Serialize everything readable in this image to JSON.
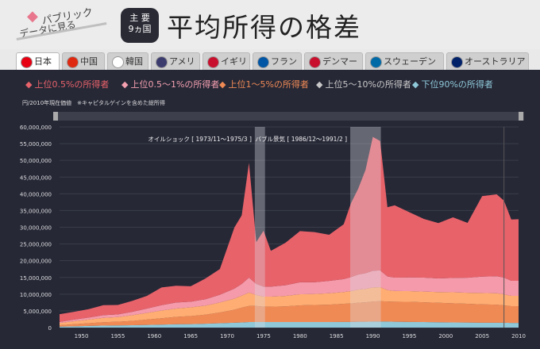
{
  "logo": {
    "line1": "パブリック",
    "line2": "データに見る"
  },
  "badge": {
    "line1": "主 要",
    "line2": "9ヵ国"
  },
  "title": "平均所得の格差",
  "tabs": [
    {
      "label": "日本",
      "active": true,
      "flag": "japan-flag-icon"
    },
    {
      "label": "中国",
      "active": false,
      "flag": "china-flag-icon"
    },
    {
      "label": "韓国",
      "active": false,
      "flag": "korea-flag-icon"
    },
    {
      "label": "アメリカ",
      "active": false,
      "flag": "usa-flag-icon"
    },
    {
      "label": "イギリス",
      "active": false,
      "flag": "uk-flag-icon"
    },
    {
      "label": "フランス",
      "active": false,
      "flag": "france-flag-icon"
    },
    {
      "label": "デンマーク",
      "active": false,
      "flag": "denmark-flag-icon"
    },
    {
      "label": "スウェーデン",
      "active": false,
      "flag": "sweden-flag-icon"
    },
    {
      "label": "オーストラリア",
      "active": false,
      "flag": "australia-flag-icon"
    }
  ],
  "legend": [
    {
      "label": "上位0.5%の所得者",
      "color": "#e8626a"
    },
    {
      "label": "上位0.5～1%の所得者",
      "color": "#f4a0b0"
    },
    {
      "label": "上位1～5%の所得者",
      "color": "#f08a55"
    },
    {
      "label": "上位5～10%の所得者",
      "color": "#c8c8c8"
    },
    {
      "label": "下位90%の所得者",
      "color": "#8fc8d8"
    }
  ],
  "note": "円/2010年現在価値　※キャピタルゲインを含めた総所得",
  "chart_data": {
    "type": "area",
    "stacked": true,
    "ylim": [
      0,
      60000000
    ],
    "yticks": [
      "0",
      "5,000,000",
      "10,000,000",
      "15,000,000",
      "20,000,000",
      "25,000,000",
      "30,000,000",
      "35,000,000",
      "40,000,000",
      "45,000,000",
      "50,000,000",
      "55,000,000",
      "60,000,000"
    ],
    "xlim": [
      1947,
      2010
    ],
    "xticks": [
      "1950",
      "1955",
      "1960",
      "1965",
      "1970",
      "1975",
      "1980",
      "1985",
      "1990",
      "1995",
      "2000",
      "2005",
      "2010"
    ],
    "x": [
      1947,
      1949,
      1951,
      1953,
      1955,
      1957,
      1959,
      1961,
      1963,
      1965,
      1967,
      1969,
      1971,
      1972,
      1973,
      1974,
      1975,
      1976,
      1978,
      1980,
      1982,
      1984,
      1986,
      1987,
      1988,
      1989,
      1990,
      1991,
      1992,
      1993,
      1995,
      1997,
      1999,
      2001,
      2003,
      2005,
      2007,
      2008,
      2009,
      2010
    ],
    "series": [
      {
        "name": "下位90%の所得者",
        "values": [
          300000,
          400000,
          500000,
          600000,
          650000,
          700000,
          800000,
          900000,
          1000000,
          1050000,
          1150000,
          1300000,
          1450000,
          1550000,
          1650000,
          1650000,
          1650000,
          1650000,
          1650000,
          1650000,
          1650000,
          1650000,
          1700000,
          1700000,
          1750000,
          1750000,
          1800000,
          1800000,
          1800000,
          1750000,
          1700000,
          1650000,
          1600000,
          1550000,
          1500000,
          1450000,
          1450000,
          1450000,
          1400000,
          1400000
        ]
      },
      {
        "name": "上位5～10%の所得者",
        "values": [
          400000,
          600000,
          800000,
          1000000,
          1100000,
          1300000,
          1600000,
          1900000,
          2200000,
          2400000,
          2700000,
          3200000,
          3900000,
          4400000,
          4800000,
          4800000,
          4600000,
          4600000,
          4700000,
          5000000,
          5100000,
          5200000,
          5400000,
          5500000,
          5700000,
          5800000,
          6000000,
          6100000,
          6000000,
          6000000,
          6000000,
          5900000,
          5800000,
          5700000,
          5600000,
          5500000,
          5400000,
          5200000,
          5000000,
          5000000
        ]
      },
      {
        "name": "上位1～5%の所得者",
        "values": [
          700000,
          900000,
          1100000,
          1300000,
          1400000,
          1700000,
          2000000,
          2300000,
          2500000,
          2600000,
          2700000,
          3000000,
          3300000,
          3600000,
          4000000,
          3300000,
          3000000,
          3000000,
          3100000,
          3300000,
          3300000,
          3400000,
          3500000,
          3700000,
          3900000,
          4000000,
          4200000,
          4200000,
          3400000,
          3200000,
          3200000,
          3200000,
          3200000,
          3300000,
          3300000,
          3400000,
          3400000,
          3300000,
          3100000,
          3100000
        ]
      },
      {
        "name": "上位0.5～1%の所得者",
        "values": [
          300000,
          500000,
          600000,
          800000,
          800000,
          1000000,
          1300000,
          1600000,
          1800000,
          1700000,
          1900000,
          2300000,
          3000000,
          3500000,
          4500000,
          3300000,
          3000000,
          3000000,
          3200000,
          3600000,
          3500000,
          3700000,
          3900000,
          4200000,
          4500000,
          4700000,
          5000000,
          5000000,
          4100000,
          4000000,
          4100000,
          4200000,
          4100000,
          4300000,
          4500000,
          4900000,
          5100000,
          5000000,
          4500000,
          4500000
        ]
      },
      {
        "name": "上位0.5%の所得者",
        "values": [
          2300000,
          2300000,
          2500000,
          3000000,
          2800000,
          3300000,
          3800000,
          5300000,
          5000000,
          4600000,
          6200000,
          7700000,
          18300000,
          20500000,
          34300000,
          12500000,
          16700000,
          10700000,
          12700000,
          15300000,
          15000000,
          13800000,
          16400000,
          22100000,
          25700000,
          30900000,
          40000000,
          38700000,
          20700000,
          21600000,
          19500000,
          17550000,
          16550000,
          18100000,
          16400000,
          24050000,
          24500000,
          23000000,
          18300000,
          18400000
        ]
      }
    ],
    "annotations": [
      {
        "label": "オイルショック [ 1973/11～1975/3 ]",
        "from": 1973.8,
        "to": 1975.2
      },
      {
        "label": "バブル景気 [ 1986/12～1991/2 ]",
        "from": 1986.9,
        "to": 1991.1
      }
    ],
    "marker_year": 2008
  }
}
